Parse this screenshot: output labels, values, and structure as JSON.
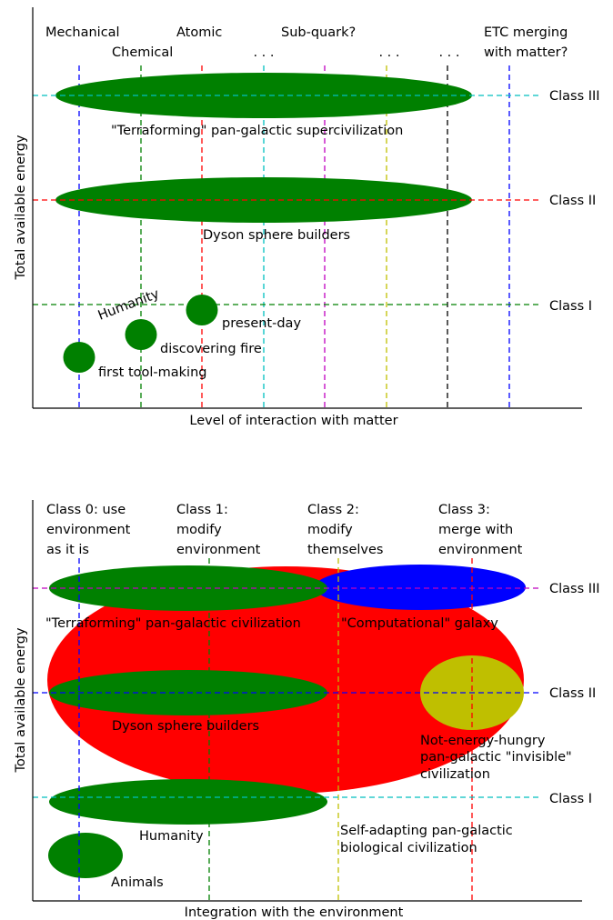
{
  "top": {
    "xlabel": "Level of interaction with matter",
    "ylabel": "Total available energy",
    "columns": [
      {
        "label": "Mechanical",
        "color": "#0000ff"
      },
      {
        "label": "Chemical",
        "color": "#008000"
      },
      {
        "label": "Atomic",
        "color": "#ff0000"
      },
      {
        "label": ". . .",
        "color": "#00bfbf"
      },
      {
        "label": "Sub-quark?",
        "color": "#bf00bf"
      },
      {
        "label": ". . .",
        "color": "#bfbf00"
      },
      {
        "label": ". . .",
        "color": "#000000"
      },
      {
        "label": "ETC merging",
        "label2": "with matter?",
        "color": "#0000ff"
      }
    ],
    "classes": [
      {
        "label": "Class III",
        "color": "#00bfbf"
      },
      {
        "label": "Class II",
        "color": "#ff0000"
      },
      {
        "label": "Class I",
        "color": "#008000"
      }
    ],
    "blobs": [
      {
        "name": "supercivilization",
        "text": "\"Terraforming\" pan-galactic supercivilization",
        "color": "#008000"
      },
      {
        "name": "dyson",
        "text": "Dyson sphere builders",
        "color": "#008000"
      },
      {
        "name": "present-day",
        "text": "present-day",
        "color": "#008000"
      },
      {
        "name": "fire",
        "text": "discovering fire",
        "color": "#008000"
      },
      {
        "name": "tool-making",
        "text": "first tool-making",
        "color": "#008000"
      }
    ],
    "humanity": "Humanity"
  },
  "bottom": {
    "xlabel": "Integration with the environment",
    "ylabel": "Total available energy",
    "columns": [
      {
        "lines": [
          "Class 0: use",
          "environment",
          "as it is"
        ],
        "color": "#0000ff"
      },
      {
        "lines": [
          "Class 1:",
          "modify",
          "environment"
        ],
        "color": "#008000"
      },
      {
        "lines": [
          "Class 2:",
          "modify",
          "themselves"
        ],
        "color": "#bfbf00"
      },
      {
        "lines": [
          "Class 3:",
          "merge with",
          "environment"
        ],
        "color": "#ff0000"
      }
    ],
    "classes": [
      {
        "label": "Class III",
        "color": "#bf00bf"
      },
      {
        "label": "Class II",
        "color": "#0000ff"
      },
      {
        "label": "Class I",
        "color": "#00bfbf"
      }
    ],
    "labels": {
      "terraforming": "\"Terraforming\" pan-galactic civilization",
      "computational": "\"Computational\" galaxy",
      "dyson": "Dyson sphere builders",
      "invisible": [
        "Not-energy-hungry",
        "pan-galactic \"invisible\"",
        "civilization"
      ],
      "humanity": "Humanity",
      "biological": [
        "Self-adapting pan-galactic",
        "biological civilization"
      ],
      "animals": "Animals"
    },
    "colors": {
      "biological": "#ff0000",
      "computational": "#0000ff",
      "invisible": "#bfbf00",
      "green": "#008000"
    }
  }
}
